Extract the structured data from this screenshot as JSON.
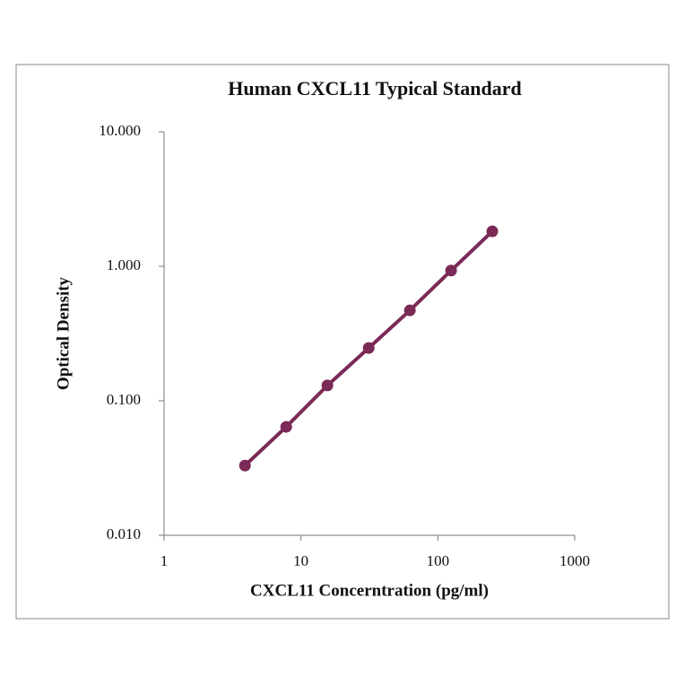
{
  "chart_data": {
    "type": "line",
    "title": "Human CXCL11 Typical Standard",
    "x_label": "CXCL11 Concerntration (pg/ml)",
    "y_label": "Optical Density",
    "x": [
      3.9,
      7.8,
      15.6,
      31.25,
      62.5,
      125,
      250
    ],
    "series": [
      {
        "name": "Optical Density",
        "color": "#7b2a57",
        "values": [
          0.033,
          0.064,
          0.13,
          0.247,
          0.47,
          0.93,
          1.82
        ]
      }
    ],
    "x_scale": "log",
    "y_scale": "log",
    "xlim": [
      1,
      1000
    ],
    "xticks": [
      1,
      10,
      100,
      1000
    ],
    "ylim": [
      0.01,
      10
    ],
    "yticks": [
      {
        "value": 10,
        "label": "10.000"
      },
      {
        "value": 1,
        "label": "1.000"
      },
      {
        "value": 0.1,
        "label": "0.100"
      },
      {
        "value": 0.01,
        "label": "0.010"
      }
    ],
    "grid": false
  }
}
